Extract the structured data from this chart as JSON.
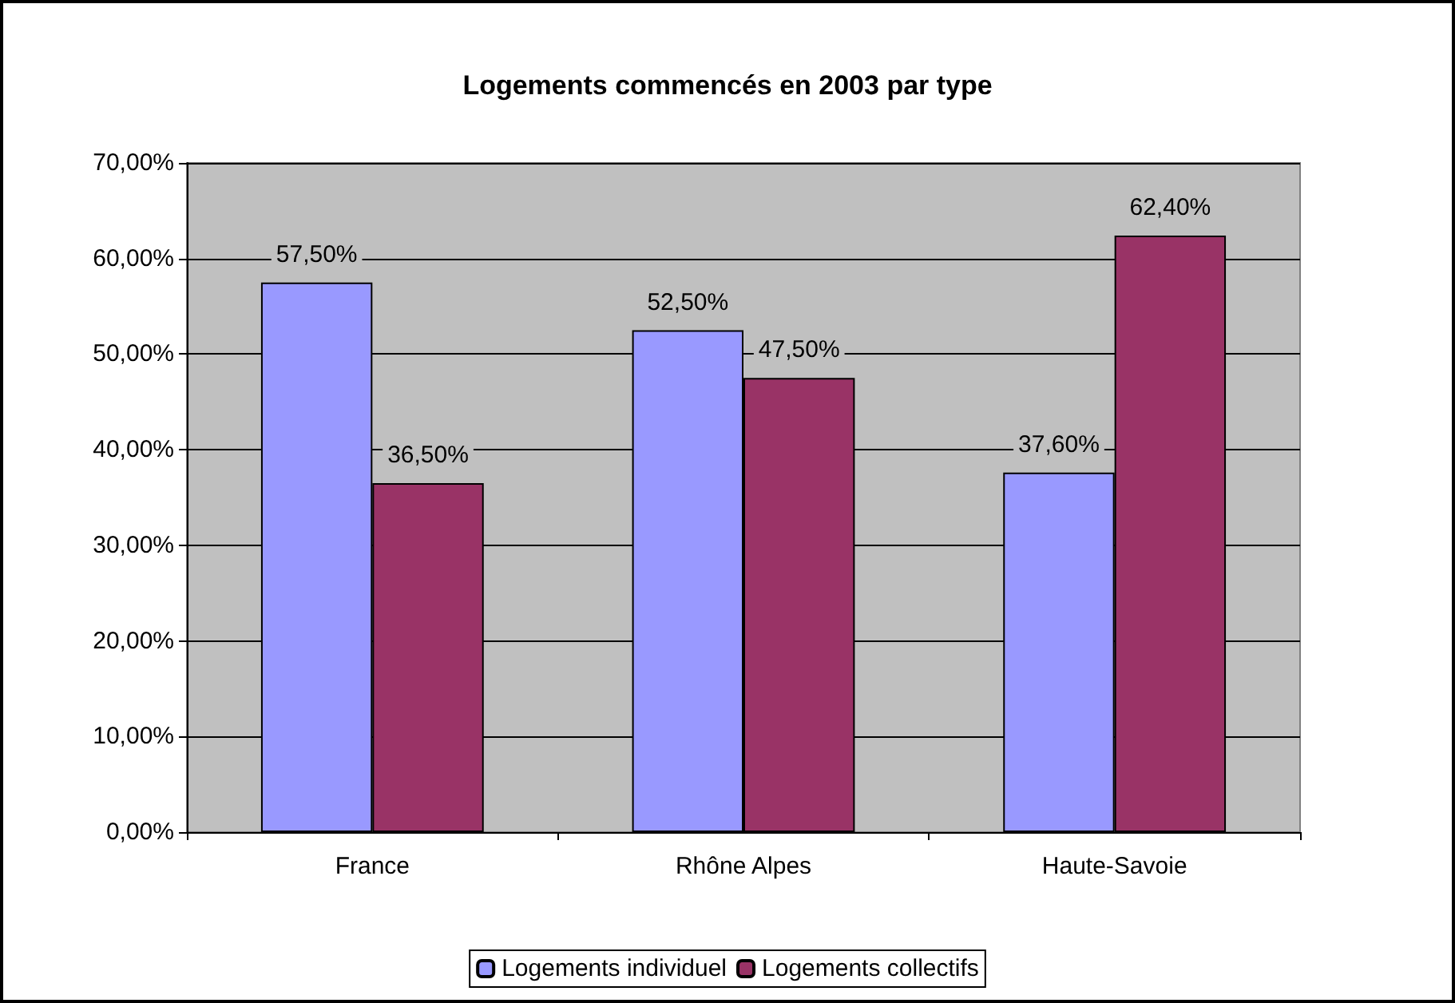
{
  "chart_data": {
    "type": "bar",
    "title": "Logements commencés en 2003 par type",
    "categories": [
      "France",
      "Rhône Alpes",
      "Haute-Savoie"
    ],
    "series": [
      {
        "name": "Logements individuel",
        "color": "#9999ff",
        "values": [
          57.5,
          52.5,
          37.6
        ],
        "value_labels": [
          "57,50%",
          "52,50%",
          "37,60%"
        ]
      },
      {
        "name": "Logements collectifs",
        "color": "#993366",
        "values": [
          36.5,
          47.5,
          62.4
        ],
        "value_labels": [
          "36,50%",
          "47,50%",
          "62,40%"
        ]
      }
    ],
    "ylim": [
      0,
      70
    ],
    "yticks": [
      {
        "value": 0,
        "label": "0,00%"
      },
      {
        "value": 10,
        "label": "10,00%"
      },
      {
        "value": 20,
        "label": "20,00%"
      },
      {
        "value": 30,
        "label": "30,00%"
      },
      {
        "value": 40,
        "label": "40,00%"
      },
      {
        "value": 50,
        "label": "50,00%"
      },
      {
        "value": 60,
        "label": "60,00%"
      },
      {
        "value": 70,
        "label": "70,00%"
      }
    ],
    "grid": "y",
    "legend": "bottom"
  }
}
